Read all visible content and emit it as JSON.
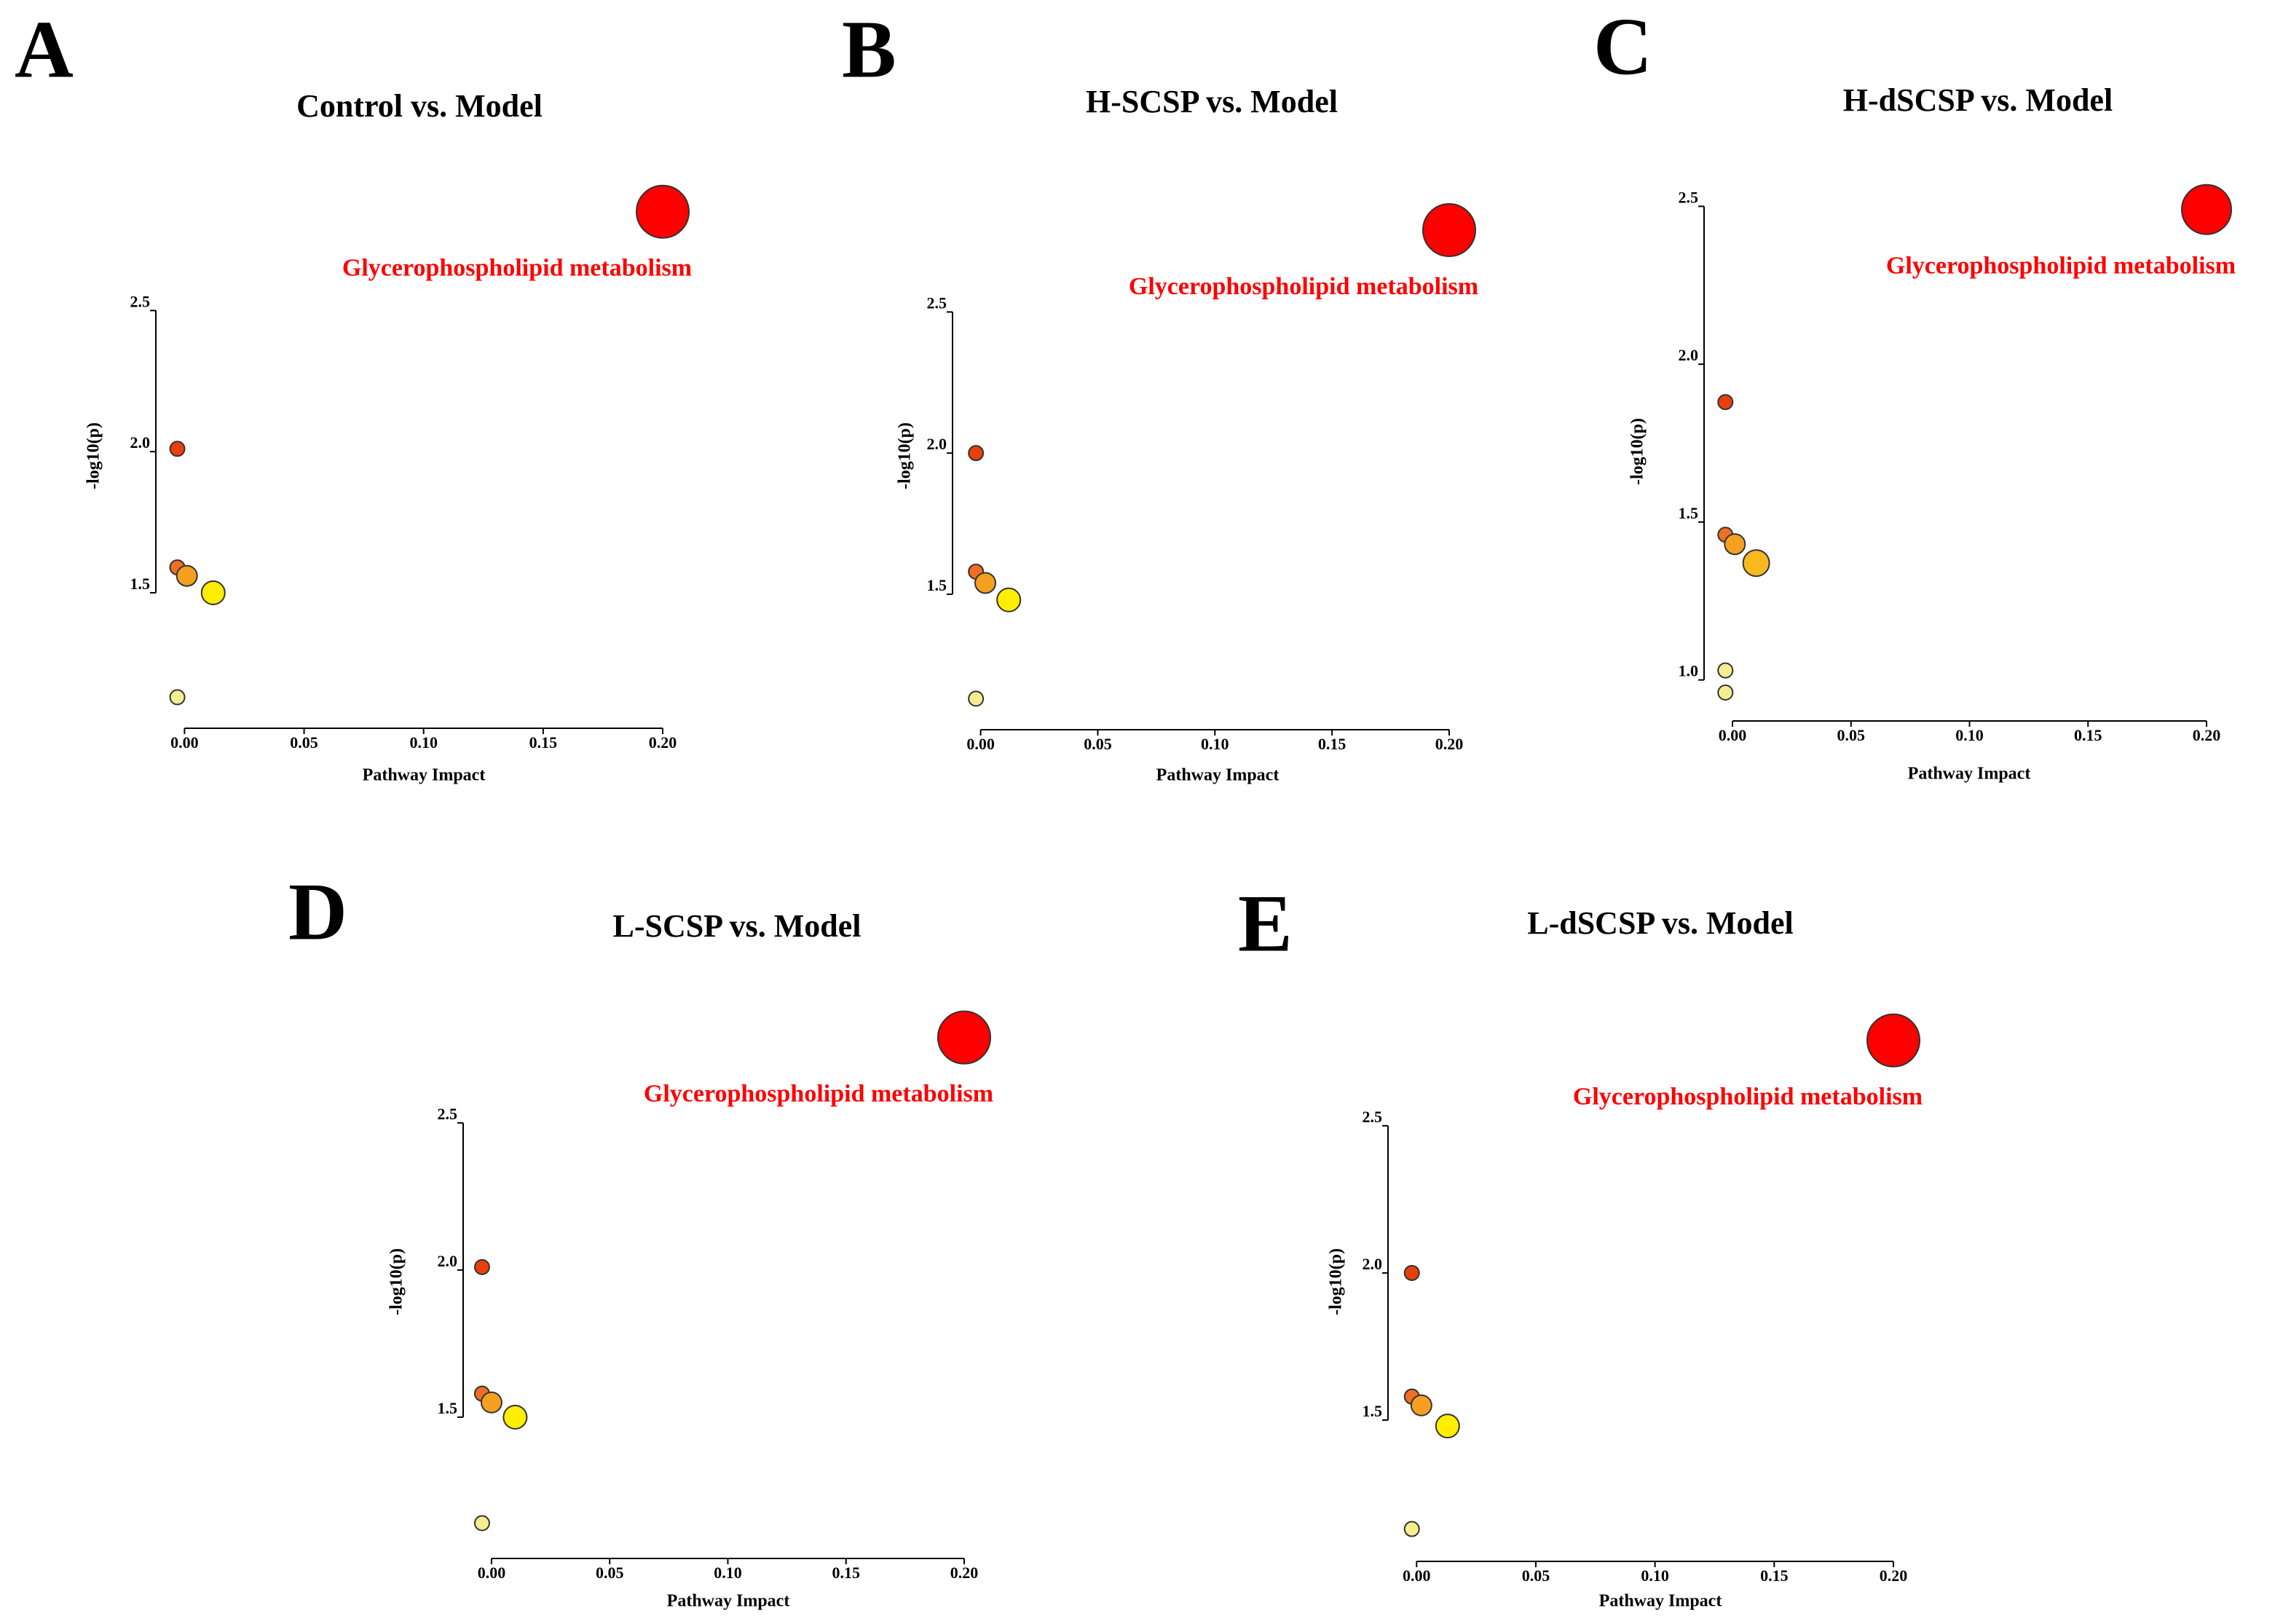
{
  "chart_data": [
    {
      "type": "scatter",
      "panel": "A",
      "title": "Control vs. Model",
      "xlabel": "Pathway Impact",
      "ylabel": "-log10(p)",
      "annotation": "Glycerophospholipid metabolism",
      "x": [
        -0.003,
        -0.003,
        0.001,
        0.012,
        -0.003,
        0.2
      ],
      "y": [
        2.01,
        1.59,
        1.56,
        1.5,
        1.13,
        2.85
      ],
      "sizes": [
        5,
        5,
        7,
        8,
        5,
        18
      ],
      "colors": [
        "#e8400c",
        "#f07020",
        "#f5a020",
        "#ffee00",
        "#f5ee90",
        "#ff0000"
      ],
      "xlim": [
        -0.012,
        0.2
      ],
      "ylim": [
        1.02,
        2.95
      ],
      "xticks": [
        {
          "value": 0,
          "label": "0.00"
        },
        0.05,
        {
          "value": 0.1,
          "label": "0.10"
        },
        0.15,
        {
          "value": 0.2,
          "label": "0.20"
        }
      ],
      "yticks": [
        1.5,
        {
          "value": 2,
          "label": "2.0"
        },
        2.5
      ]
    },
    {
      "type": "scatter",
      "panel": "B",
      "title": "H-SCSP vs. Model",
      "xlabel": "Pathway Impact",
      "ylabel": "-log10(p)",
      "annotation": "Glycerophospholipid metabolism",
      "x": [
        -0.002,
        -0.002,
        0.002,
        0.012,
        -0.002,
        0.2
      ],
      "y": [
        2.0,
        1.58,
        1.54,
        1.48,
        1.13,
        2.79
      ],
      "sizes": [
        5,
        5,
        7,
        8,
        5,
        18
      ],
      "colors": [
        "#e8400c",
        "#f07020",
        "#f5a020",
        "#ffee00",
        "#f5ee90",
        "#ff0000"
      ],
      "xlim": [
        -0.012,
        0.2
      ],
      "ylim": [
        1.02,
        2.95
      ],
      "xticks": [
        {
          "value": 0,
          "label": "0.00"
        },
        0.05,
        {
          "value": 0.1,
          "label": "0.10"
        },
        0.15,
        {
          "value": 0.2,
          "label": "0.20"
        }
      ],
      "yticks": [
        1.5,
        {
          "value": 2,
          "label": "2.0"
        },
        2.5
      ]
    },
    {
      "type": "scatter",
      "panel": "C",
      "title": "H-dSCSP vs. Model",
      "xlabel": "Pathway Impact",
      "ylabel": "-log10(p)",
      "annotation": "Glycerophospholipid metabolism",
      "x": [
        -0.003,
        -0.003,
        0.001,
        0.01,
        -0.003,
        -0.003,
        0.2
      ],
      "y": [
        1.88,
        1.46,
        1.43,
        1.37,
        1.03,
        0.96,
        2.49
      ],
      "sizes": [
        5,
        5,
        7,
        9,
        5,
        5,
        17
      ],
      "colors": [
        "#e8400c",
        "#f07020",
        "#f5a020",
        "#f8b820",
        "#f5ee90",
        "#f5ee90",
        "#ff0000"
      ],
      "xlim": [
        -0.012,
        0.2
      ],
      "ylim": [
        0.87,
        2.6
      ],
      "xticks": [
        {
          "value": 0,
          "label": "0.00"
        },
        0.05,
        {
          "value": 0.1,
          "label": "0.10"
        },
        0.15,
        {
          "value": 0.2,
          "label": "0.20"
        }
      ],
      "yticks": [
        {
          "value": 1,
          "label": "1.0"
        },
        1.5,
        {
          "value": 2,
          "label": "2.0"
        },
        2.5
      ]
    },
    {
      "type": "scatter",
      "panel": "D",
      "title": "L-SCSP vs. Model",
      "xlabel": "Pathway Impact",
      "ylabel": "-log10(p)",
      "annotation": "Glycerophospholipid metabolism",
      "x": [
        -0.004,
        -0.004,
        0.0,
        0.01,
        -0.004,
        0.2
      ],
      "y": [
        2.01,
        1.58,
        1.55,
        1.5,
        1.14,
        2.79
      ],
      "sizes": [
        5,
        5,
        7,
        8,
        5,
        18
      ],
      "colors": [
        "#e8400c",
        "#f07020",
        "#f5a020",
        "#ffee00",
        "#f5ee90",
        "#ff0000"
      ],
      "xlim": [
        -0.012,
        0.2
      ],
      "ylim": [
        1.02,
        2.95
      ],
      "xticks": [
        {
          "value": 0,
          "label": "0.00"
        },
        0.05,
        {
          "value": 0.1,
          "label": "0.10"
        },
        0.15,
        {
          "value": 0.2,
          "label": "0.20"
        }
      ],
      "yticks": [
        1.5,
        {
          "value": 2,
          "label": "2.0"
        },
        2.5
      ]
    },
    {
      "type": "scatter",
      "panel": "E",
      "title": "L-dSCSP vs. Model",
      "xlabel": "Pathway Impact",
      "ylabel": "-log10(p)",
      "annotation": "Glycerophospholipid metabolism",
      "x": [
        -0.002,
        -0.002,
        0.002,
        0.013,
        -0.002,
        0.2
      ],
      "y": [
        2.0,
        1.58,
        1.55,
        1.48,
        1.13,
        2.79
      ],
      "sizes": [
        5,
        5,
        7,
        8,
        5,
        18
      ],
      "colors": [
        "#e8400c",
        "#f07020",
        "#f5a020",
        "#ffee00",
        "#f5ee90",
        "#ff0000"
      ],
      "xlim": [
        -0.012,
        0.2
      ],
      "ylim": [
        1.02,
        2.95
      ],
      "xticks": [
        {
          "value": 0,
          "label": "0.00"
        },
        0.05,
        {
          "value": 0.1,
          "label": "0.10"
        },
        0.15,
        {
          "value": 0.2,
          "label": "0.20"
        }
      ],
      "yticks": [
        1.5,
        {
          "value": 2,
          "label": "2.0"
        },
        2.5
      ]
    }
  ]
}
